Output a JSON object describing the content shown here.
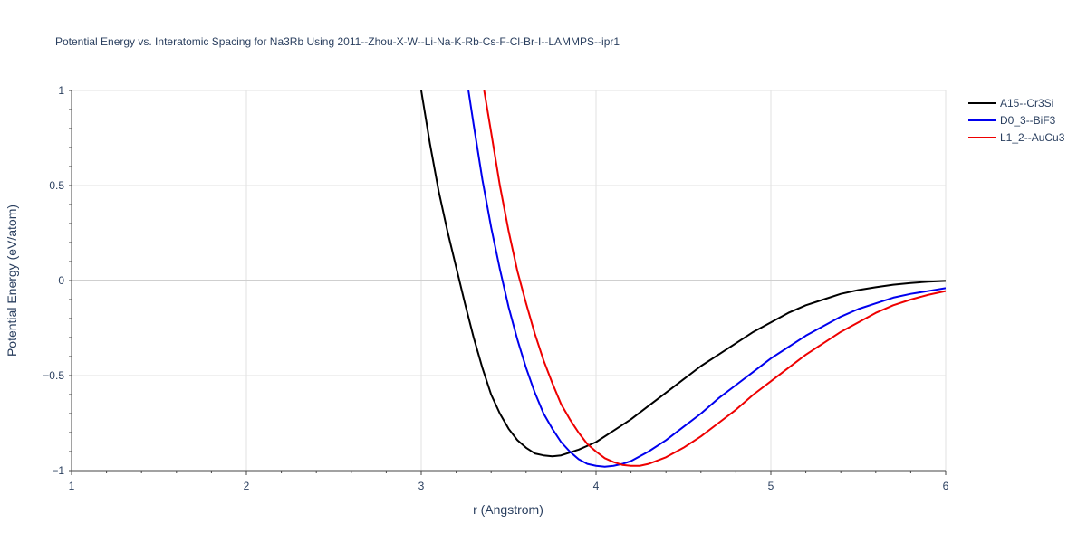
{
  "chart_data": {
    "type": "line",
    "title": "Potential Energy vs. Interatomic Spacing for Na3Rb Using 2011--Zhou-X-W--Li-Na-K-Rb-Cs-F-Cl-Br-I--LAMMPS--ipr1",
    "xlabel": "r (Angstrom)",
    "ylabel": "Potential Energy (eV/atom)",
    "xlim": [
      1,
      6
    ],
    "ylim": [
      -1,
      1
    ],
    "xticks": [
      1,
      2,
      3,
      4,
      5,
      6
    ],
    "xtick_labels": [
      "1",
      "2",
      "3",
      "4",
      "5",
      "6"
    ],
    "yticks": [
      -1,
      -0.5,
      0,
      0.5,
      1
    ],
    "ytick_labels": [
      "−1",
      "−0.5",
      "0",
      "0.5",
      "1"
    ],
    "grid": true,
    "legend_position": "top-right",
    "series": [
      {
        "name": "A15--Cr3Si",
        "color": "#000000",
        "x": [
          3.0,
          3.05,
          3.1,
          3.15,
          3.2,
          3.25,
          3.3,
          3.35,
          3.4,
          3.45,
          3.5,
          3.55,
          3.6,
          3.65,
          3.7,
          3.75,
          3.8,
          3.9,
          4.0,
          4.1,
          4.2,
          4.3,
          4.4,
          4.5,
          4.6,
          4.7,
          4.8,
          4.9,
          5.0,
          5.1,
          5.2,
          5.3,
          5.4,
          5.5,
          5.6,
          5.7,
          5.8,
          5.9,
          6.0
        ],
        "y": [
          1.0,
          0.72,
          0.47,
          0.26,
          0.07,
          -0.12,
          -0.3,
          -0.46,
          -0.6,
          -0.7,
          -0.78,
          -0.84,
          -0.88,
          -0.91,
          -0.92,
          -0.925,
          -0.92,
          -0.89,
          -0.85,
          -0.79,
          -0.73,
          -0.66,
          -0.59,
          -0.52,
          -0.45,
          -0.39,
          -0.33,
          -0.27,
          -0.22,
          -0.17,
          -0.13,
          -0.1,
          -0.07,
          -0.05,
          -0.035,
          -0.022,
          -0.013,
          -0.006,
          -0.002
        ]
      },
      {
        "name": "D0_3--BiF3",
        "color": "#0000ee",
        "x": [
          3.27,
          3.3,
          3.35,
          3.4,
          3.45,
          3.5,
          3.55,
          3.6,
          3.65,
          3.7,
          3.75,
          3.8,
          3.85,
          3.9,
          3.95,
          4.0,
          4.05,
          4.1,
          4.15,
          4.2,
          4.3,
          4.4,
          4.5,
          4.6,
          4.7,
          4.8,
          4.9,
          5.0,
          5.1,
          5.2,
          5.3,
          5.4,
          5.5,
          5.6,
          5.7,
          5.8,
          5.9,
          6.0
        ],
        "y": [
          1.0,
          0.82,
          0.53,
          0.28,
          0.06,
          -0.14,
          -0.31,
          -0.46,
          -0.59,
          -0.7,
          -0.78,
          -0.85,
          -0.9,
          -0.94,
          -0.965,
          -0.975,
          -0.98,
          -0.975,
          -0.965,
          -0.95,
          -0.9,
          -0.84,
          -0.77,
          -0.7,
          -0.62,
          -0.55,
          -0.48,
          -0.41,
          -0.35,
          -0.29,
          -0.24,
          -0.19,
          -0.15,
          -0.12,
          -0.09,
          -0.07,
          -0.055,
          -0.04
        ]
      },
      {
        "name": "L1_2--AuCu3",
        "color": "#ee0000",
        "x": [
          3.36,
          3.4,
          3.45,
          3.5,
          3.55,
          3.6,
          3.65,
          3.7,
          3.75,
          3.8,
          3.85,
          3.9,
          3.95,
          4.0,
          4.05,
          4.1,
          4.15,
          4.2,
          4.25,
          4.3,
          4.4,
          4.5,
          4.6,
          4.7,
          4.8,
          4.9,
          5.0,
          5.1,
          5.2,
          5.3,
          5.4,
          5.5,
          5.6,
          5.7,
          5.8,
          5.9,
          6.0
        ],
        "y": [
          1.0,
          0.78,
          0.5,
          0.26,
          0.05,
          -0.12,
          -0.28,
          -0.42,
          -0.54,
          -0.65,
          -0.73,
          -0.8,
          -0.86,
          -0.9,
          -0.935,
          -0.955,
          -0.97,
          -0.975,
          -0.975,
          -0.965,
          -0.93,
          -0.88,
          -0.82,
          -0.75,
          -0.68,
          -0.6,
          -0.53,
          -0.46,
          -0.39,
          -0.33,
          -0.27,
          -0.22,
          -0.17,
          -0.13,
          -0.1,
          -0.075,
          -0.055
        ]
      }
    ]
  }
}
